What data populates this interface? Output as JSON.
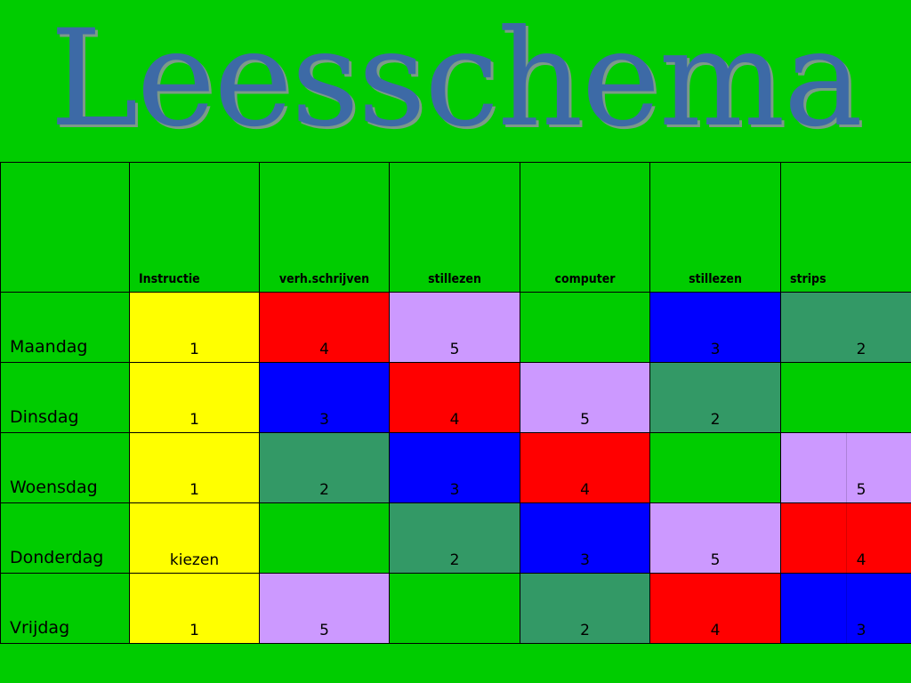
{
  "title": "Leesschema",
  "colors": {
    "Y": "#ffff00",
    "R": "#ff0000",
    "P": "#cc99ff",
    "G": "#00cc00",
    "B": "#0000ff",
    "D": "#339966"
  },
  "headers": [
    "",
    "Instructie",
    "verh.schrijven",
    "stillezen",
    "computer",
    "stillezen",
    "strips"
  ],
  "rows": [
    {
      "day": "Maandag",
      "cells": [
        {
          "c": "Y",
          "v": "1"
        },
        {
          "c": "R",
          "v": "4"
        },
        {
          "c": "P",
          "v": "5"
        },
        {
          "c": "G",
          "v": ""
        },
        {
          "c": "B",
          "v": "3"
        },
        {
          "c": "D",
          "v": "2"
        }
      ]
    },
    {
      "day": "Dinsdag",
      "cells": [
        {
          "c": "Y",
          "v": "1"
        },
        {
          "c": "B",
          "v": "3"
        },
        {
          "c": "R",
          "v": "4"
        },
        {
          "c": "P",
          "v": "5"
        },
        {
          "c": "D",
          "v": "2"
        },
        {
          "c": "G",
          "v": ""
        }
      ]
    },
    {
      "day": "Woensdag",
      "cells": [
        {
          "c": "Y",
          "v": "1"
        },
        {
          "c": "D",
          "v": "2"
        },
        {
          "c": "B",
          "v": "3"
        },
        {
          "c": "R",
          "v": "4"
        },
        {
          "c": "G",
          "v": ""
        },
        {
          "c": "P",
          "v": "5"
        }
      ]
    },
    {
      "day": "Donderdag",
      "cells": [
        {
          "c": "Y",
          "v": "kiezen"
        },
        {
          "c": "G",
          "v": ""
        },
        {
          "c": "D",
          "v": "2"
        },
        {
          "c": "B",
          "v": "3"
        },
        {
          "c": "P",
          "v": "5"
        },
        {
          "c": "R",
          "v": "4"
        }
      ]
    },
    {
      "day": "Vrijdag",
      "cells": [
        {
          "c": "Y",
          "v": "1"
        },
        {
          "c": "P",
          "v": "5"
        },
        {
          "c": "G",
          "v": ""
        },
        {
          "c": "D",
          "v": "2"
        },
        {
          "c": "R",
          "v": "4"
        },
        {
          "c": "B",
          "v": "3"
        }
      ]
    }
  ]
}
